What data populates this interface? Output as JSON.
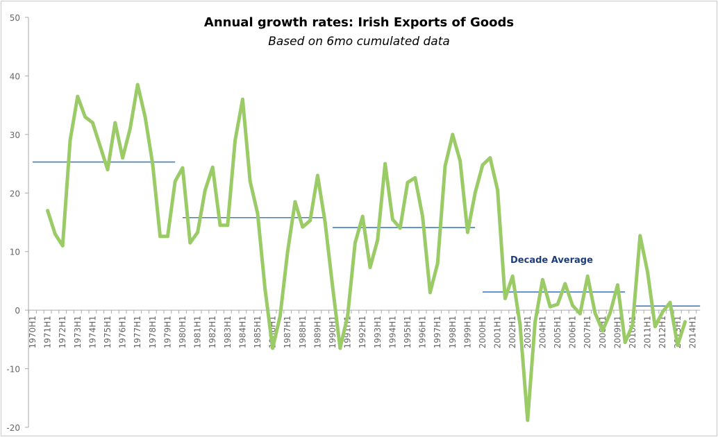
{
  "chart_data": {
    "type": "line",
    "title": "Annual growth rates: Irish Exports of Goods",
    "subtitle": "Based on 6mo cumulated data",
    "xlabel": "",
    "ylabel": "",
    "ylim": [
      -20,
      50
    ],
    "yticks": [
      -20,
      -10,
      0,
      10,
      20,
      30,
      40,
      50
    ],
    "grid": false,
    "colors": {
      "growth": "#9bcb67",
      "average": "#3f7ebf",
      "annotation": "#1f3d7a"
    },
    "annotation": "Decade Average",
    "start_year": 1970,
    "end_year": 2014,
    "series": [
      {
        "values": [
          null,
          null,
          17,
          13,
          11,
          29,
          36.5,
          33,
          32,
          28,
          24,
          32,
          26,
          31,
          38.5,
          33,
          25,
          12.6,
          12.6,
          22,
          24.3,
          11.5,
          13.3,
          20.5,
          24.4,
          14.5,
          14.5,
          29,
          36,
          22,
          16.5,
          3.5,
          -6.5,
          -1,
          10,
          18.5,
          14.2,
          15.3,
          23,
          15,
          4,
          -6.5,
          -1,
          11.5,
          16,
          7.3,
          12,
          25,
          15.5,
          14,
          21.8,
          22.6,
          16,
          3,
          8,
          24.6,
          30,
          25.5,
          13.3,
          20,
          24.8,
          26,
          20.5,
          2,
          5.8,
          -2.5,
          -18.8,
          -2,
          5.2,
          0.6,
          1,
          4.5,
          0.8,
          -0.6,
          5.8,
          -0.5,
          -3.5,
          -0.5,
          4.3,
          -5.5,
          -2.5,
          12.7,
          6.5,
          -2.8,
          -0.3,
          1.3,
          -6,
          -2,
          null
        ]
      }
    ],
    "decade_averages": [
      {
        "from": "1970H1",
        "to": "1979H2",
        "value": 25.3
      },
      {
        "from": "1980H1",
        "to": "1989H2",
        "value": 15.8
      },
      {
        "from": "1990H1",
        "to": "1999H2",
        "value": 14.1
      },
      {
        "from": "2000H1",
        "to": "2009H2",
        "value": 3.1
      },
      {
        "from": "2010H1",
        "to": "2014H1",
        "value": 0.7
      }
    ]
  }
}
